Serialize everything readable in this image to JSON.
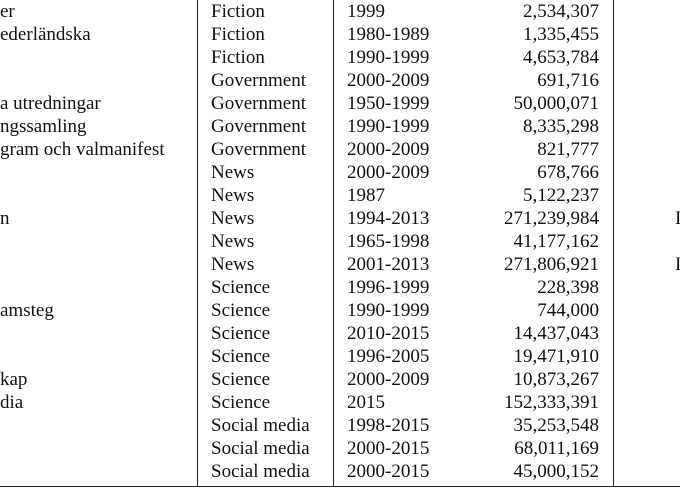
{
  "table": {
    "rows": [
      {
        "name": "er",
        "genre": "Fiction",
        "years": "1999",
        "tokens": "2,534,307",
        "extra": ""
      },
      {
        "name": "ederländska",
        "genre": "Fiction",
        "years": "1980-1989",
        "tokens": "1,335,455",
        "extra": ""
      },
      {
        "name": "",
        "genre": "Fiction",
        "years": "1990-1999",
        "tokens": "4,653,784",
        "extra": ""
      },
      {
        "name": "",
        "genre": "Government",
        "years": "2000-2009",
        "tokens": "691,716",
        "extra": ""
      },
      {
        "name": "a utredningar",
        "genre": "Government",
        "years": "1950-1999",
        "tokens": "50,000,071",
        "extra": ""
      },
      {
        "name": "ngssamling",
        "genre": "Government",
        "years": "1990-1999",
        "tokens": "8,335,298",
        "extra": ""
      },
      {
        "name": "gram och valmanifest",
        "genre": "Government",
        "years": "2000-2009",
        "tokens": "821,777",
        "extra": ""
      },
      {
        "name": "",
        "genre": "News",
        "years": "2000-2009",
        "tokens": "678,766",
        "extra": ""
      },
      {
        "name": "",
        "genre": "News",
        "years": "1987",
        "tokens": "5,122,237",
        "extra": ""
      },
      {
        "name": "n",
        "genre": "News",
        "years": "1994-2013",
        "tokens": "271,239,984",
        "extra": "I"
      },
      {
        "name": "",
        "genre": "News",
        "years": "1965-1998",
        "tokens": "41,177,162",
        "extra": ""
      },
      {
        "name": "",
        "genre": "News",
        "years": "2001-2013",
        "tokens": "271,806,921",
        "extra": "I"
      },
      {
        "name": "",
        "genre": "Science",
        "years": "1996-1999",
        "tokens": "228,398",
        "extra": ""
      },
      {
        "name": "amsteg",
        "genre": "Science",
        "years": "1990-1999",
        "tokens": "744,000",
        "extra": ""
      },
      {
        "name": "",
        "genre": "Science",
        "years": "2010-2015",
        "tokens": "14,437,043",
        "extra": ""
      },
      {
        "name": "",
        "genre": "Science",
        "years": "1996-2005",
        "tokens": "19,471,910",
        "extra": ""
      },
      {
        "name": "kap",
        "genre": "Science",
        "years": "2000-2009",
        "tokens": "10,873,267",
        "extra": ""
      },
      {
        "name": "dia",
        "genre": "Science",
        "years": "2015",
        "tokens": "152,333,391",
        "extra": ""
      },
      {
        "name": "",
        "genre": "Social media",
        "years": "1998-2015",
        "tokens": "35,253,548",
        "extra": ""
      },
      {
        "name": "",
        "genre": "Social media",
        "years": "2000-2015",
        "tokens": "68,011,169",
        "extra": ""
      },
      {
        "name": "",
        "genre": "Social media",
        "years": "2000-2015",
        "tokens": "45,000,152",
        "extra": ""
      }
    ]
  }
}
